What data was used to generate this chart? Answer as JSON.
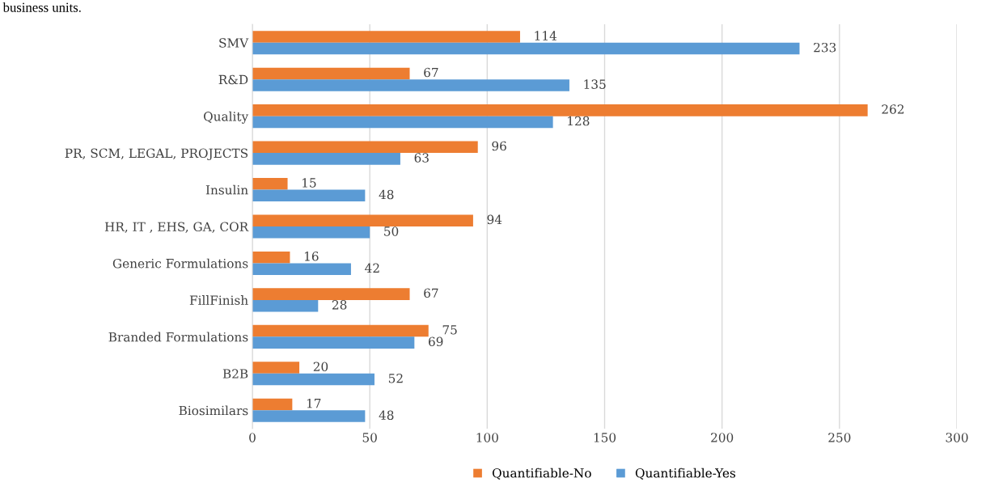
{
  "chart_data": {
    "type": "bar",
    "orientation": "horizontal",
    "categories": [
      "SMV",
      "R&D",
      "Quality",
      "PR, SCM, LEGAL, PROJECTS",
      "Insulin",
      "HR, IT , EHS, GA, COR",
      "Generic Formulations",
      "FillFinish",
      "Branded Formulations",
      "B2B",
      "Biosimilars"
    ],
    "series": [
      {
        "name": "Quantifiable-No",
        "color": "#ed7d31",
        "values": [
          114,
          67,
          262,
          96,
          15,
          94,
          16,
          67,
          75,
          20,
          17
        ]
      },
      {
        "name": "Quantifiable-Yes",
        "color": "#5b9bd5",
        "values": [
          233,
          135,
          128,
          63,
          48,
          50,
          42,
          28,
          69,
          52,
          48
        ]
      }
    ],
    "xlim": [
      0,
      300
    ],
    "xticks": [
      0,
      50,
      100,
      150,
      200,
      250,
      300
    ],
    "grid": "x",
    "legend": "bottom",
    "data_labels": true,
    "annotations": [
      "business units."
    ]
  }
}
